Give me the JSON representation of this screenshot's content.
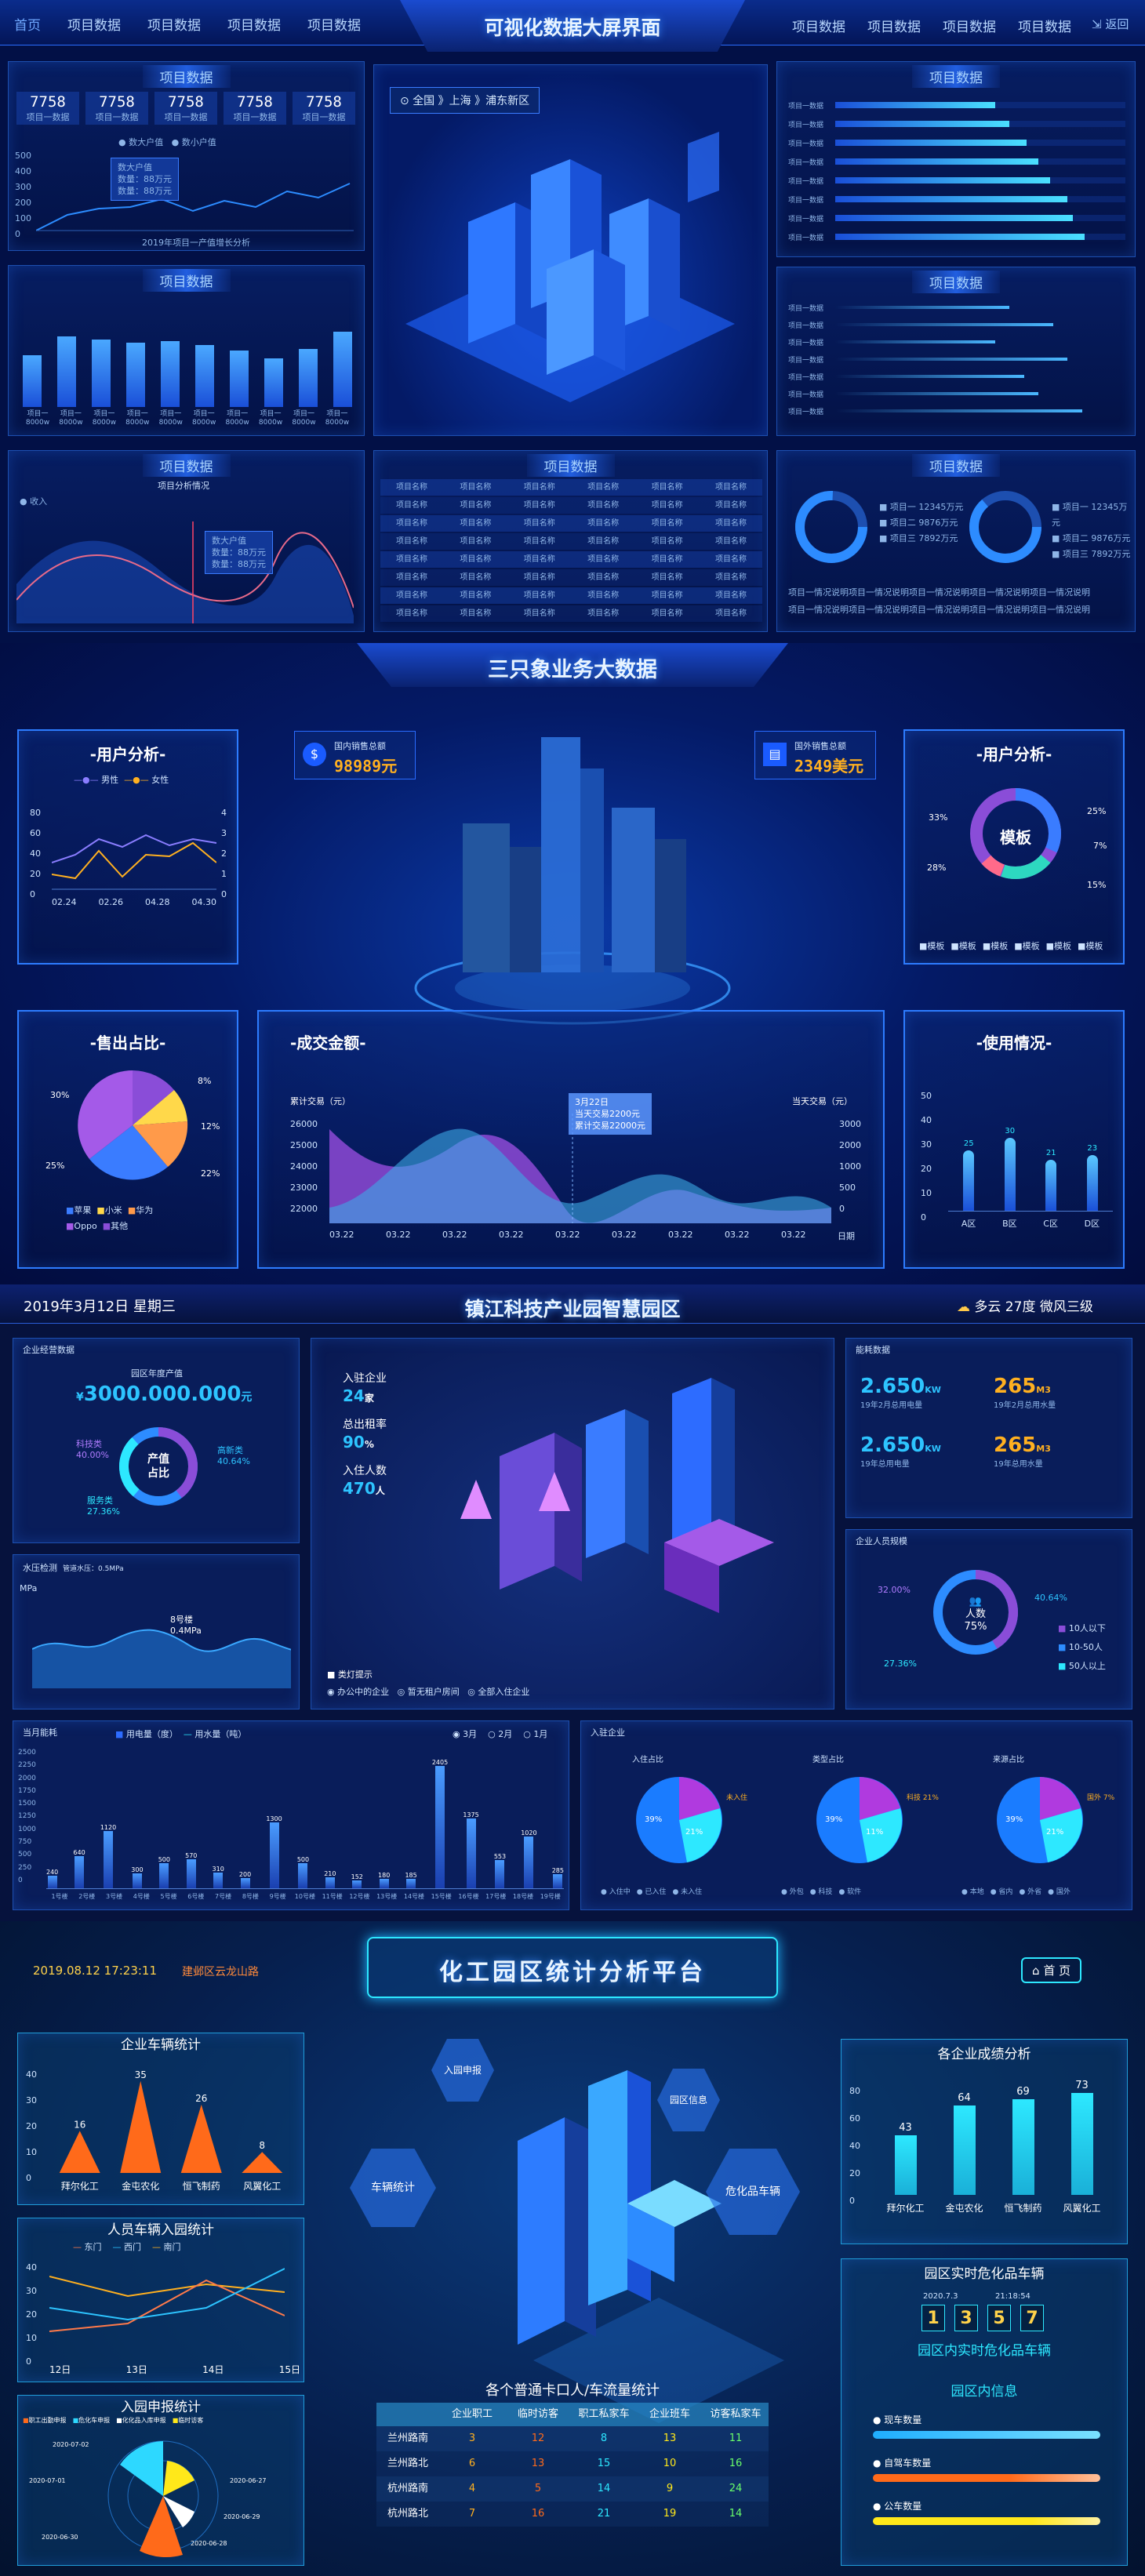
{
  "s1": {
    "nav_left": [
      "首页",
      "项目数据",
      "项目数据",
      "项目数据",
      "项目数据"
    ],
    "title": "可视化数据大屏界面",
    "nav_right": [
      "项目数据",
      "项目数据",
      "项目数据",
      "项目数据"
    ],
    "back": "返回",
    "panel_title": "项目数据",
    "stats": [
      {
        "value": "7758",
        "label": "项目一数据"
      },
      {
        "value": "7758",
        "label": "项目一数据"
      },
      {
        "value": "7758",
        "label": "项目一数据"
      },
      {
        "value": "7758",
        "label": "项目一数据"
      },
      {
        "value": "7758",
        "label": "项目一数据"
      }
    ],
    "legend": [
      "数大户值",
      "数小户值"
    ],
    "yticks": [
      "500",
      "400",
      "300",
      "200",
      "100",
      "0"
    ],
    "tooltip": [
      "数大户值",
      "数量：88万元",
      "数量：88万元"
    ],
    "chart_caption": "2019年项目一产值增长分析",
    "bar_labels": [
      "项目一",
      "项目一",
      "项目一",
      "项目一",
      "项目一",
      "项目一",
      "项目一",
      "项目一",
      "项目一",
      "项目一"
    ],
    "bar_sub": "8000w",
    "map_breadcrumb": "全国 》上海 》浦东新区",
    "income_label": "收入",
    "wave_caption": "项目分析情况",
    "table_cell": "项目名称",
    "ring_legend": [
      "项目一",
      "项目二",
      "项目三"
    ],
    "ring_values": [
      "12345万元",
      "9876万元",
      "7892万元"
    ],
    "footer_text": "项目一情况说明项目一情况说明项目一情况说明项目一情况说明项目一情况说明",
    "hbar_label": "项目一数据"
  },
  "s2": {
    "title": "三只象业务大数据",
    "domestic_label": "国内销售总额",
    "domestic_value": "98989元",
    "foreign_label": "国外销售总额",
    "foreign_value": "2349美元",
    "user_title": "-用户分析-",
    "user_legend": [
      "男性",
      "女性"
    ],
    "user_x": [
      "02.24",
      "02.26",
      "04.28",
      "04.30"
    ],
    "user_yl": [
      "80",
      "60",
      "40",
      "20",
      "0"
    ],
    "user_yr": [
      "4",
      "3",
      "2",
      "1",
      "0"
    ],
    "donut_center": "模板",
    "donut_pcts": [
      "33%",
      "25%",
      "7%",
      "28%",
      "15%"
    ],
    "donut_legend": [
      "模板",
      "模板",
      "模板",
      "模板",
      "模板",
      "模板"
    ],
    "sale_title": "-售出占比-",
    "sale_pcts": [
      "30%",
      "8%",
      "12%",
      "25%",
      "22%"
    ],
    "sale_legend": [
      "苹果",
      "小米",
      "华为",
      "Oppo",
      "其他"
    ],
    "amount_title": "-成交金额-",
    "amount_left": "累计交易（元）",
    "amount_right": "当天交易（元）",
    "amount_yl": [
      "26000",
      "25000",
      "24000",
      "23000",
      "22000"
    ],
    "amount_yr": [
      "3000",
      "2000",
      "1000",
      "500",
      "0"
    ],
    "amount_x": [
      "03.22",
      "03.22",
      "03.22",
      "03.22",
      "03.22",
      "03.22",
      "03.22",
      "03.22",
      "03.22",
      "日期"
    ],
    "amount_tip": [
      "3月22日",
      "当天交易2200元",
      "累计交易22000元"
    ],
    "use_title": "-使用情况-",
    "use_y": [
      "50",
      "40",
      "30",
      "20",
      "10",
      "0"
    ],
    "use_x": [
      "A区",
      "B区",
      "C区",
      "D区"
    ],
    "use_vals": [
      "25",
      "30",
      "21",
      "23"
    ]
  },
  "s3": {
    "date": "2019年3月12日  星期三",
    "title": "镇江科技产业园智慧园区",
    "weather": "多云  27度  微风三级",
    "ent_title": "企业经营数据",
    "ent_sub": "园区年度产值",
    "ent_value": "3000.000.000",
    "ent_unit": "元",
    "ring_labels": [
      "科技类",
      "40.00%",
      "高新类",
      "40.64%",
      "服务类",
      "27.36%"
    ],
    "ring_center": [
      "产值",
      "占比"
    ],
    "water_title": "水压检测",
    "water_sub": "管道水压：0.5MPa",
    "water_unit": "MPa",
    "water_tip": [
      "8号楼",
      "0.4MPa"
    ],
    "kpi": [
      {
        "label": "入驻企业",
        "value": "24",
        "unit": "家"
      },
      {
        "label": "总出租率",
        "value": "90",
        "unit": "%"
      },
      {
        "label": "入住人数",
        "value": "470",
        "unit": "人"
      }
    ],
    "map_legend_title": "类灯提示",
    "map_legend": [
      "办公中的企业",
      "暂无租户房间",
      "全部入住企业"
    ],
    "energy_title": "能耗数据",
    "energy": [
      {
        "v": "2.650",
        "u": "KW",
        "l": "19年2月总用电量"
      },
      {
        "v": "265",
        "u": "M3",
        "l": "19年2月总用水量"
      },
      {
        "v": "2.650",
        "u": "KW",
        "l": "19年总用电量"
      },
      {
        "v": "265",
        "u": "M3",
        "l": "19年总用水量"
      }
    ],
    "people_title": "企业人员规模",
    "people_pcts": [
      "32.00%",
      "40.64%",
      "75%",
      "27.36%"
    ],
    "people_center": "人数",
    "people_legend": [
      "10人以下",
      "10-50人",
      "50人以上"
    ],
    "month_title": "当月能耗",
    "month_legend": [
      "用电量（度）",
      "用水量（吨）"
    ],
    "month_tabs": [
      "3月",
      "2月",
      "1月"
    ],
    "month_y": [
      "2500",
      "2250",
      "2000",
      "1750",
      "1500",
      "1250",
      "1000",
      "750",
      "500",
      "250",
      "0"
    ],
    "month_x": [
      "1号楼",
      "2号楼",
      "3号楼",
      "4号楼",
      "5号楼",
      "6号楼",
      "7号楼",
      "8号楼",
      "9号楼",
      "10号楼",
      "11号楼",
      "12号楼",
      "13号楼",
      "14号楼",
      "15号楼",
      "16号楼",
      "17号楼",
      "18号楼",
      "19号楼"
    ],
    "month_vals": [
      240,
      640,
      1120,
      300,
      500,
      570,
      310,
      200,
      1300,
      500,
      210,
      152,
      180,
      185,
      2405,
      1375,
      553,
      1020,
      285
    ],
    "join_title": "入驻企业",
    "join_pies": [
      {
        "title": "入住占比",
        "a": "39%",
        "b": "21%",
        "c": "未入住"
      },
      {
        "title": "类型占比",
        "a": "39%",
        "b": "11%",
        "c": "科技 21%"
      },
      {
        "title": "来源占比",
        "a": "39%",
        "b": "21%",
        "c": "国外 7%"
      }
    ],
    "join_legends": [
      [
        "入住中",
        "已入住",
        "未入住"
      ],
      [
        "外包",
        "科技",
        "软件"
      ],
      [
        "本地",
        "省内",
        "外省",
        "国外"
      ]
    ]
  },
  "s4": {
    "datetime": "2019.08.12    17:23:11",
    "location": "建邺区云龙山路",
    "title": "化工园区统计分析平台",
    "home": "首 页",
    "car_title": "企业车辆统计",
    "car_y": [
      "40",
      "30",
      "20",
      "10",
      "0"
    ],
    "car_x": [
      "拜尔化工",
      "金屯农化",
      "恒飞制药",
      "风翼化工"
    ],
    "car_vals": [
      16,
      35,
      26,
      8
    ],
    "perf_title": "各企业成绩分析",
    "perf_y": [
      "80",
      "60",
      "40",
      "20",
      "0"
    ],
    "perf_x": [
      "拜尔化工",
      "金屯农化",
      "恒飞制药",
      "风翼化工"
    ],
    "perf_vals": [
      43,
      64,
      69,
      73
    ],
    "person_title": "人员车辆入园统计",
    "person_legend": [
      "东门",
      "西门",
      "南门"
    ],
    "person_y": [
      "40",
      "30",
      "20",
      "10",
      "0"
    ],
    "person_x": [
      "12日",
      "13日",
      "14日",
      "15日"
    ],
    "declare_title": "入园申报统计",
    "declare_legend": [
      "职工出勤申报",
      "危化车申报",
      "化化品入库申报",
      "临时访客"
    ],
    "declare_dates": [
      "2020-07-02",
      "2020-07-01",
      "2020-06-30",
      "2020-06-27",
      "2020-06-28",
      "2020-06-29"
    ],
    "hex_labels": [
      "入园申报",
      "车辆统计",
      "园区信息",
      "危化品车辆"
    ],
    "realtime_title": "园区实时危化品车辆",
    "realtime_date": "2020.7.3",
    "realtime_time": "21:18:54",
    "realtime_digits": [
      "1",
      "3",
      "5",
      "7"
    ],
    "realtime_sub": "园区内实时危化品车辆",
    "info_title": "园区内信息",
    "info_items": [
      "现车数量",
      "自驾车数量",
      "公车数量"
    ],
    "flow_title": "各个普通卡口人/车流量统计",
    "flow_cols": [
      "企业职工",
      "临时访客",
      "职工私家车",
      "企业班车",
      "访客私家车"
    ],
    "flow_rows": [
      [
        "兰州路南",
        "3",
        "12",
        "8",
        "13",
        "11"
      ],
      [
        "兰州路北",
        "6",
        "13",
        "15",
        "10",
        "16"
      ],
      [
        "杭州路南",
        "4",
        "5",
        "14",
        "9",
        "24"
      ],
      [
        "杭州路北",
        "7",
        "16",
        "21",
        "19",
        "14"
      ]
    ]
  }
}
